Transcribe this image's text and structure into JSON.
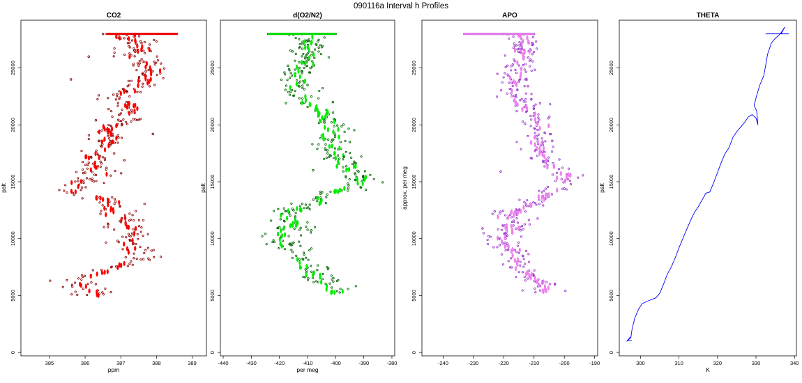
{
  "figure_title": "090116a   Interval h Profiles",
  "chart_data": [
    {
      "type": "scatter",
      "title": "CO2",
      "xlabel": "ppm",
      "ylabel": "palt",
      "xlim": [
        384.2,
        389.4
      ],
      "ylim": [
        -300,
        29200
      ],
      "xticks": [
        385,
        386,
        387,
        388,
        389
      ],
      "xtick_labels": [
        "385",
        "386",
        "387",
        "388",
        "389"
      ],
      "yticks": [
        0,
        5000,
        10000,
        15000,
        20000,
        25000
      ],
      "ytick_labels": [
        "0",
        "5000",
        "10000",
        "15000",
        "20000",
        "25000"
      ],
      "colors": {
        "points": "#8b0000",
        "dense": "#ff0000"
      },
      "series": [
        {
          "x": [
            386.5,
            387.2,
            386.1,
            387.7,
            385.6,
            386.9,
            387.3,
            386.3,
            387.9,
            386.7,
            387.1,
            386.0
          ],
          "y": [
            28000,
            27200,
            26000,
            24700,
            24000,
            22700,
            21300,
            20400,
            19200,
            18200,
            16900,
            15800
          ]
        }
      ],
      "profile": [
        [
          386.3,
          5000
        ],
        [
          386.1,
          5600
        ],
        [
          385.7,
          6300
        ],
        [
          386.4,
          7000
        ],
        [
          387.1,
          7600
        ],
        [
          387.5,
          8300
        ],
        [
          387.4,
          9000
        ],
        [
          387.1,
          9700
        ],
        [
          387.4,
          10400
        ],
        [
          387.2,
          11100
        ],
        [
          386.9,
          11800
        ],
        [
          386.7,
          12500
        ],
        [
          386.9,
          13200
        ],
        [
          386.0,
          13800
        ],
        [
          385.5,
          14200
        ],
        [
          385.8,
          14800
        ],
        [
          386.3,
          15500
        ],
        [
          386.3,
          16200
        ],
        [
          386.2,
          16900
        ],
        [
          386.3,
          17600
        ],
        [
          386.6,
          18300
        ],
        [
          386.8,
          19000
        ],
        [
          386.6,
          19700
        ],
        [
          387.1,
          20400
        ],
        [
          387.1,
          21100
        ],
        [
          387.3,
          21800
        ],
        [
          387.0,
          22500
        ],
        [
          387.4,
          23200
        ],
        [
          387.8,
          24000
        ],
        [
          387.9,
          24700
        ],
        [
          387.8,
          25500
        ],
        [
          387.4,
          26200
        ],
        [
          387.7,
          27000
        ],
        [
          387.0,
          27700
        ],
        [
          387.3,
          28000
        ]
      ],
      "spread": 0.6,
      "top_line": {
        "y": 28000,
        "x": [
          386.6,
          388.6
        ]
      }
    },
    {
      "type": "scatter",
      "title": "d(O2/N2)",
      "xlabel": "per meg",
      "ylabel": "palt",
      "xlim": [
        -441,
        -379
      ],
      "ylim": [
        -300,
        29200
      ],
      "xticks": [
        -440,
        -430,
        -420,
        -410,
        -400,
        -390,
        -380
      ],
      "xtick_labels": [
        "-440",
        "-430",
        "-420",
        "-410",
        "-400",
        "-390",
        "-380"
      ],
      "yticks": [
        0,
        5000,
        10000,
        15000,
        20000,
        25000
      ],
      "ytick_labels": [
        "0",
        "5000",
        "10000",
        "15000",
        "20000",
        "25000"
      ],
      "colors": {
        "points": "#006400",
        "dense": "#00ee00"
      },
      "series": [
        {
          "x": [
            -412,
            -406,
            -417,
            -410,
            -401,
            -404,
            -395,
            -397,
            -408,
            -391,
            -415,
            -420
          ],
          "y": [
            28000,
            26800,
            25200,
            23500,
            22000,
            20200,
            18500,
            17200,
            16000,
            14500,
            12500,
            11000
          ]
        }
      ],
      "profile": [
        [
          -400,
          5200
        ],
        [
          -402,
          6000
        ],
        [
          -407,
          6800
        ],
        [
          -411,
          7600
        ],
        [
          -413,
          8400
        ],
        [
          -416,
          9200
        ],
        [
          -422,
          9900
        ],
        [
          -417,
          10600
        ],
        [
          -414,
          11300
        ],
        [
          -418,
          12000
        ],
        [
          -413,
          12700
        ],
        [
          -406,
          13400
        ],
        [
          -402,
          14000
        ],
        [
          -393,
          14700
        ],
        [
          -390,
          15500
        ],
        [
          -395,
          16200
        ],
        [
          -399,
          17000
        ],
        [
          -401,
          17800
        ],
        [
          -404,
          18600
        ],
        [
          -400,
          19300
        ],
        [
          -402,
          20100
        ],
        [
          -404,
          21000
        ],
        [
          -409,
          21800
        ],
        [
          -412,
          22500
        ],
        [
          -413,
          23300
        ],
        [
          -414,
          24100
        ],
        [
          -412,
          24900
        ],
        [
          -409,
          25700
        ],
        [
          -410,
          26500
        ],
        [
          -409,
          27300
        ],
        [
          -412,
          28000
        ]
      ],
      "spread": 7,
      "top_line": {
        "y": 28000,
        "x": [
          -424,
          -400
        ]
      }
    },
    {
      "type": "scatter",
      "title": "APO",
      "xlabel": "",
      "ylabel": "approx. per meg",
      "xlim": [
        -247,
        -189
      ],
      "ylim": [
        -300,
        29200
      ],
      "xticks": [
        -240,
        -230,
        -220,
        -210,
        -200,
        -190
      ],
      "xtick_labels": [
        "-240",
        "-230",
        "-220",
        "-210",
        "-200",
        "-190"
      ],
      "yticks": [
        0,
        5000,
        10000,
        15000,
        20000,
        25000
      ],
      "ytick_labels": [
        "0",
        "5000",
        "10000",
        "15000",
        "20000",
        "25000"
      ],
      "colors": {
        "points": "#9932cc",
        "dense": "#ee82ee"
      },
      "series": [
        {
          "x": [
            -220,
            -214,
            -217,
            -212,
            -208,
            -213,
            -204,
            -211,
            -221,
            -200,
            -223,
            -227
          ],
          "y": [
            28000,
            26700,
            25300,
            23400,
            21900,
            20100,
            18600,
            17100,
            15900,
            14400,
            12400,
            10900
          ]
        }
      ],
      "profile": [
        [
          -206,
          5200
        ],
        [
          -208,
          6000
        ],
        [
          -212,
          6800
        ],
        [
          -214,
          7600
        ],
        [
          -216,
          8400
        ],
        [
          -219,
          9200
        ],
        [
          -222,
          9900
        ],
        [
          -218,
          10600
        ],
        [
          -215,
          11300
        ],
        [
          -219,
          12000
        ],
        [
          -213,
          12700
        ],
        [
          -209,
          13400
        ],
        [
          -204,
          14000
        ],
        [
          -200,
          14700
        ],
        [
          -200,
          15500
        ],
        [
          -203,
          16200
        ],
        [
          -206,
          17000
        ],
        [
          -208,
          17800
        ],
        [
          -210,
          18600
        ],
        [
          -208,
          19300
        ],
        [
          -208,
          20100
        ],
        [
          -210,
          21000
        ],
        [
          -213,
          21800
        ],
        [
          -216,
          22500
        ],
        [
          -216,
          23300
        ],
        [
          -217,
          24100
        ],
        [
          -214,
          24900
        ],
        [
          -213,
          25700
        ],
        [
          -214,
          26500
        ],
        [
          -213,
          27300
        ],
        [
          -216,
          28000
        ]
      ],
      "spread": 6,
      "top_line": {
        "y": 28000,
        "x": [
          -233,
          -210
        ]
      }
    },
    {
      "type": "line",
      "title": "THETA",
      "xlabel": "K",
      "ylabel": "palt",
      "xlim": [
        294.5,
        340.5
      ],
      "ylim": [
        -300,
        29200
      ],
      "xticks": [
        300,
        310,
        320,
        330,
        340
      ],
      "xtick_labels": [
        "300",
        "310",
        "320",
        "330",
        "340"
      ],
      "yticks": [
        0,
        5000,
        10000,
        15000,
        20000,
        25000
      ],
      "ytick_labels": [
        "0",
        "5000",
        "10000",
        "15000",
        "20000",
        "25000"
      ],
      "colors": {
        "line": "#0000ff"
      },
      "series": [
        {
          "x": [
            296.5,
            297.5,
            297.8,
            298.5,
            299.5,
            300.5,
            302.5,
            304,
            305,
            306,
            307,
            308,
            309,
            310,
            311,
            312,
            313,
            314,
            315,
            316,
            317,
            318,
            319,
            320,
            321,
            322,
            323,
            324,
            325,
            326,
            327,
            328,
            329,
            330,
            330.5,
            330.2,
            329.5,
            330.2,
            331,
            332,
            332.5,
            333,
            334,
            335,
            336,
            336.5,
            337.5,
            336.5
          ],
          "y": [
            1000,
            1300,
            2000,
            3000,
            3800,
            4300,
            4600,
            4800,
            5200,
            6000,
            6900,
            7500,
            8300,
            9200,
            10000,
            10800,
            11600,
            12300,
            12800,
            13400,
            14000,
            14100,
            14900,
            15800,
            16700,
            17500,
            18000,
            18900,
            19400,
            19800,
            20200,
            20700,
            20900,
            20600,
            20000,
            21200,
            21700,
            22600,
            23500,
            24300,
            25200,
            26200,
            27200,
            27600,
            27900,
            28100,
            28600,
            28000
          ]
        }
      ],
      "top_line": {
        "y": 28000,
        "x": [
          332.5,
          338.5
        ]
      }
    }
  ]
}
